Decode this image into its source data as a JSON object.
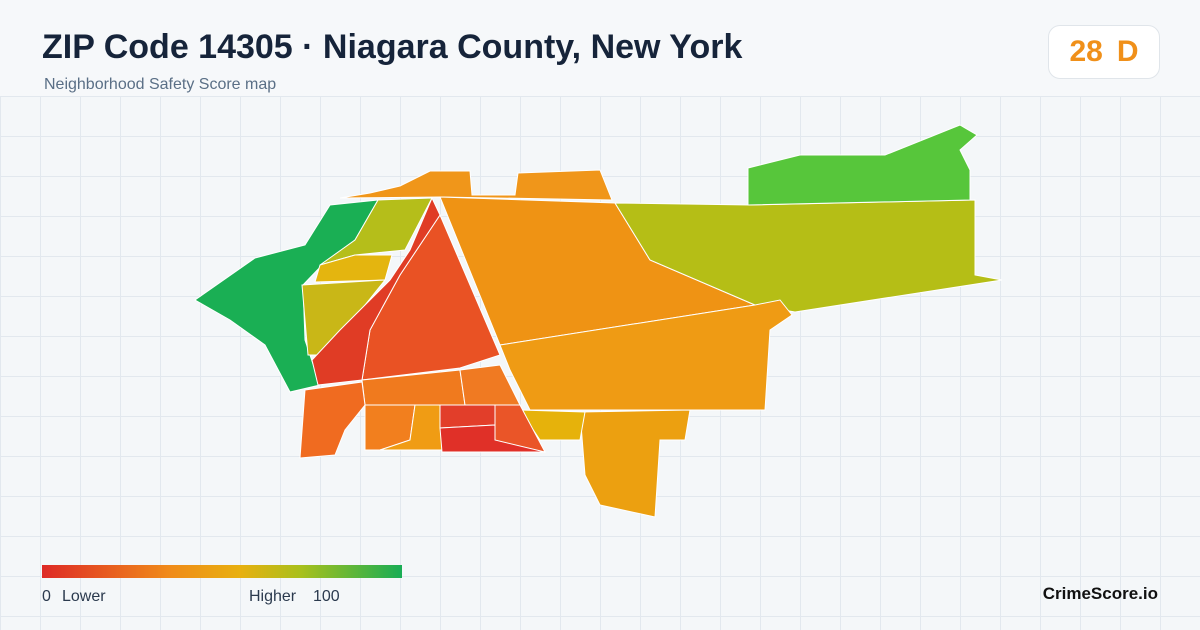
{
  "header": {
    "title": "ZIP Code 14305 · Niagara County, New York",
    "subtitle": "Neighborhood Safety Score map"
  },
  "score": {
    "value": 28,
    "grade": "D"
  },
  "legend": {
    "min": 0,
    "min_label": "Lower",
    "max_label": "Higher",
    "max": 100
  },
  "brand": "CrimeScore.io"
}
